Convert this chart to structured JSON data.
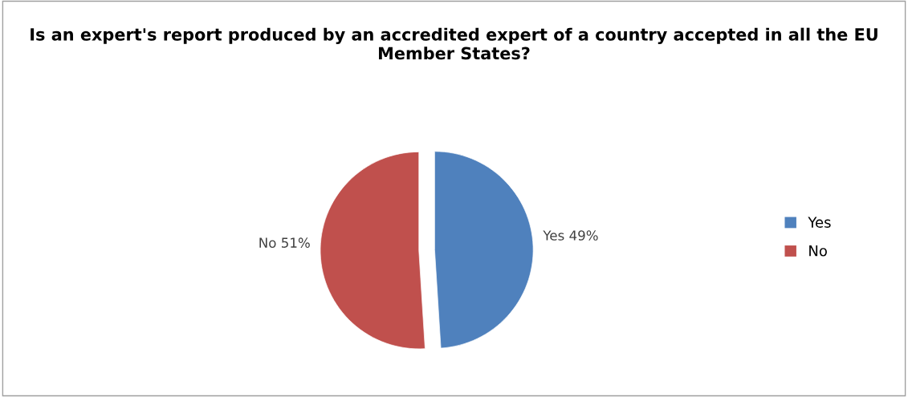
{
  "chart_data": {
    "type": "pie",
    "title": "Is an expert's report produced by an accredited expert of a country accepted in all the EU Member States?",
    "categories": [
      "Yes",
      "No"
    ],
    "values": [
      49,
      51
    ],
    "colors": [
      "#4f81bd",
      "#c0504d"
    ],
    "value_labels": [
      "Yes 49%",
      "No 51%"
    ],
    "legend": "right"
  }
}
